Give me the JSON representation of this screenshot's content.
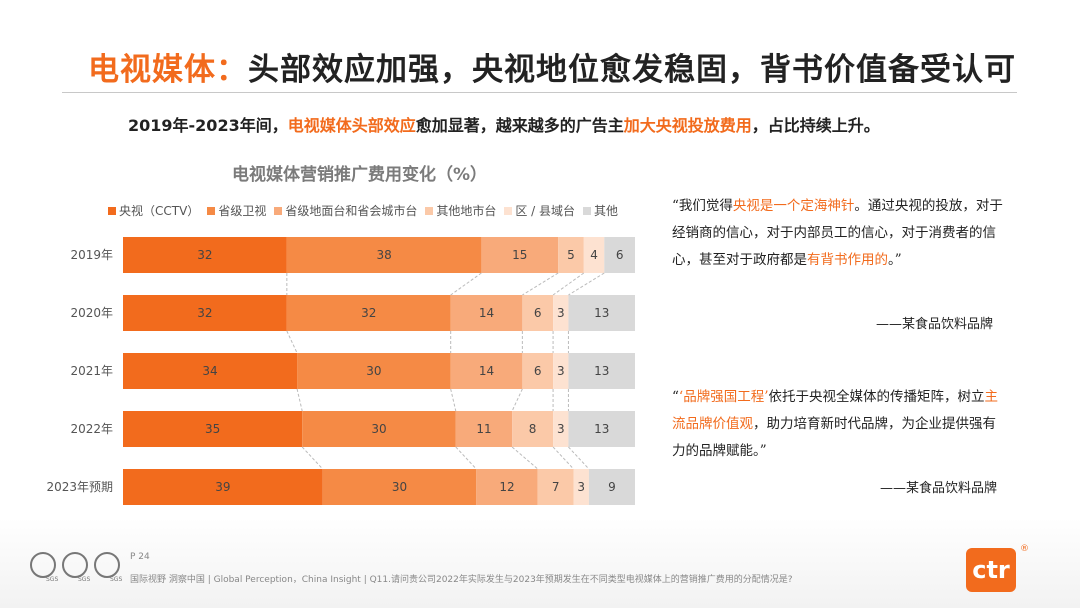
{
  "title": {
    "highlight": "电视媒体：",
    "rest": "头部效应加强，央视地位愈发稳固，背书价值备受认可"
  },
  "subtitle": {
    "p1": "2019年-2023年间，",
    "h1": "电视媒体头部效应",
    "p2": "愈加显著，越来越多的广告主",
    "h2": "加大央视投放费用",
    "p3": "，占比持续上升。"
  },
  "chart_data": {
    "type": "bar",
    "orientation": "horizontal",
    "stacked": true,
    "title": "电视媒体营销推广费用变化（%）",
    "categories": [
      "2019年",
      "2020年",
      "2021年",
      "2022年",
      "2023年预期"
    ],
    "series": [
      {
        "name": "央视（CCTV）",
        "color": "#f26b1d",
        "values": [
          32,
          32,
          34,
          35,
          39
        ]
      },
      {
        "name": "省级卫视",
        "color": "#f58a45",
        "values": [
          38,
          32,
          30,
          30,
          30
        ]
      },
      {
        "name": "省级地面台和省会城市台",
        "color": "#f8aa7a",
        "values": [
          15,
          14,
          14,
          11,
          12
        ]
      },
      {
        "name": "其他地市台",
        "color": "#fbc9a8",
        "values": [
          5,
          6,
          6,
          8,
          7
        ]
      },
      {
        "name": "区 / 县域台",
        "color": "#fde2d1",
        "values": [
          4,
          3,
          3,
          3,
          3
        ]
      },
      {
        "name": "其他",
        "color": "#d9d9d9",
        "values": [
          6,
          13,
          13,
          13,
          9
        ]
      }
    ],
    "legend_position": "top",
    "grid": false
  },
  "quote1": {
    "open": "“我们觉得",
    "h1": "央视是一个定海神针",
    "mid": "。通过央视的投放，对于经销商的信心，对于内部员工的信心，对于消费者的信心，甚至对于政府都是",
    "h2": "有背书作用的",
    "close": "。”",
    "source": "——某食品饮料品牌"
  },
  "quote2": {
    "open": "“",
    "h1": "‘品牌强国工程’",
    "mid": "依托于央视全媒体的传播矩阵，树立",
    "h2": "主流品牌价值观",
    "close": "，助力培育新时代品牌，为企业提供强有力的品牌赋能。”",
    "source": "——某食品饮料品牌"
  },
  "footer": {
    "page": "P 24",
    "note": "国际视野 洞察中国 | Global Perception，China Insight | Q11.请问贵公司2022年实际发生与2023年预期发生在不同类型电视媒体上的营销推广费用的分配情况是?",
    "sgs_label": "SGS",
    "logo_text": "ctr",
    "logo_mark": "®"
  }
}
